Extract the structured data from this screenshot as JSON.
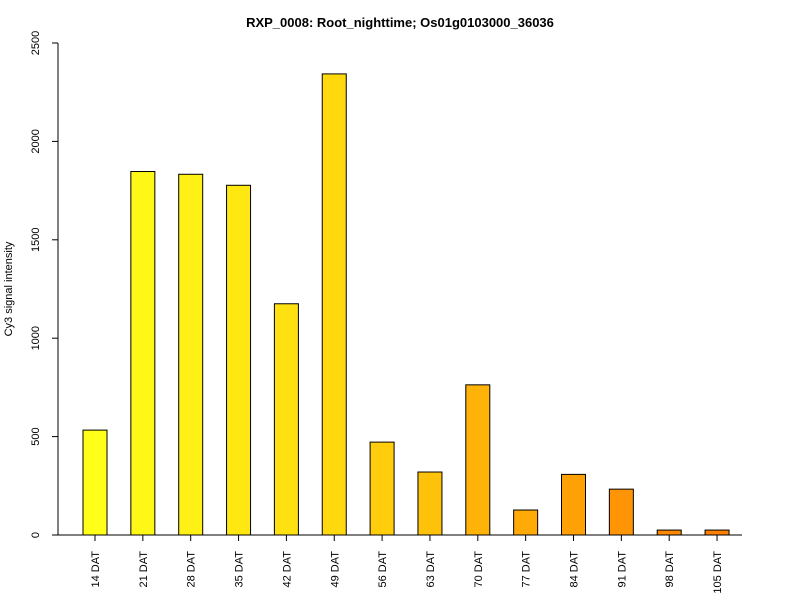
{
  "chart_data": {
    "type": "bar",
    "title": "RXP_0008: Root_nighttime; Os01g0103000_36036",
    "xlabel": "",
    "ylabel": "Cy3 signal intensity",
    "ylim": [
      0,
      2500
    ],
    "yticks": [
      0,
      500,
      1000,
      1500,
      2000,
      2500
    ],
    "grid": false,
    "categories": [
      "14 DAT",
      "21 DAT",
      "28 DAT",
      "35 DAT",
      "42 DAT",
      "49 DAT",
      "56 DAT",
      "63 DAT",
      "70 DAT",
      "77 DAT",
      "84 DAT",
      "91 DAT",
      "98 DAT",
      "105 DAT"
    ],
    "values": [
      533,
      1847,
      1833,
      1777,
      1175,
      2343,
      472,
      320,
      763,
      127,
      308,
      233,
      25,
      25
    ],
    "colors": [
      "#FFFF1A",
      "#FFF817",
      "#FFF015",
      "#FFE812",
      "#FFE010",
      "#FFD80E",
      "#FFCD0C",
      "#FFC20A",
      "#FFB308",
      "#FFAA07",
      "#FFA005",
      "#FF9504",
      "#FF8A02",
      "#FF8001"
    ]
  }
}
